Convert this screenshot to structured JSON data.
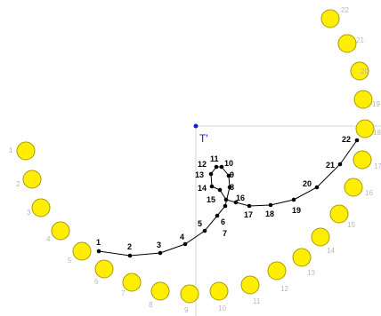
{
  "colors": {
    "background": "#ffffff",
    "guide_line": "#d4d4d4",
    "curve": "#000000",
    "point": "#000000",
    "origin": "#1a1adc",
    "circle_fill": "#ffee00",
    "circle_stroke": "#a89c00",
    "circle_label": "#b8b8b8"
  },
  "origin_label": "T'",
  "path_points": [
    {
      "label": "1"
    },
    {
      "label": "2"
    },
    {
      "label": "3"
    },
    {
      "label": "4"
    },
    {
      "label": "5"
    },
    {
      "label": "6"
    },
    {
      "label": "7"
    },
    {
      "label": "8"
    },
    {
      "label": "9"
    },
    {
      "label": "10"
    },
    {
      "label": "11"
    },
    {
      "label": "12"
    },
    {
      "label": "13"
    },
    {
      "label": "14"
    },
    {
      "label": "15"
    },
    {
      "label": "16"
    },
    {
      "label": "17"
    },
    {
      "label": "18"
    },
    {
      "label": "19"
    },
    {
      "label": "20"
    },
    {
      "label": "21"
    },
    {
      "label": "22"
    }
  ],
  "circles": [
    {
      "label": "1"
    },
    {
      "label": "2"
    },
    {
      "label": "3"
    },
    {
      "label": "4"
    },
    {
      "label": "5"
    },
    {
      "label": "6"
    },
    {
      "label": "7"
    },
    {
      "label": "8"
    },
    {
      "label": "9"
    },
    {
      "label": "10"
    },
    {
      "label": "11"
    },
    {
      "label": "12"
    },
    {
      "label": "13"
    },
    {
      "label": "14"
    },
    {
      "label": "15"
    },
    {
      "label": "16"
    },
    {
      "label": "17"
    },
    {
      "label": "18"
    },
    {
      "label": "19"
    },
    {
      "label": "20"
    },
    {
      "label": "21"
    },
    {
      "label": "22"
    }
  ]
}
